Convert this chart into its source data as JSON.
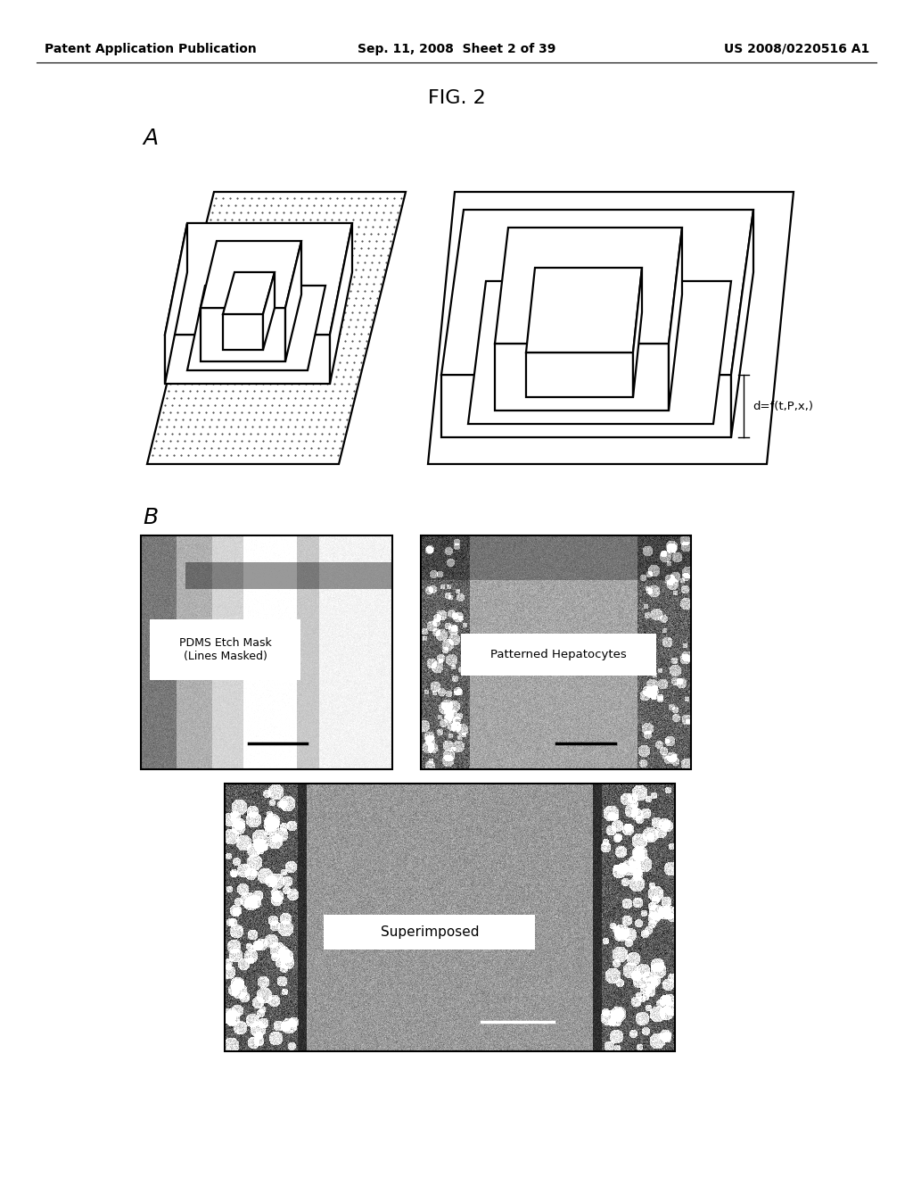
{
  "header_left": "Patent Application Publication",
  "header_center": "Sep. 11, 2008  Sheet 2 of 39",
  "header_right": "US 2008/0220516 A1",
  "fig_label": "FIG. 2",
  "panel_A_label": "A",
  "panel_B_label": "B",
  "annotation_label": "d=f(t,P,x,)",
  "label_pdms": "PDMS Etch Mask\n(Lines Masked)",
  "label_hepatocytes": "Patterned Hepatocytes",
  "label_superimposed": "Superimposed",
  "bg_color": "#ffffff",
  "text_color": "#000000",
  "header_fontsize": 10,
  "fig_label_fontsize": 16,
  "panel_label_fontsize": 18,
  "annotation_fontsize": 10
}
